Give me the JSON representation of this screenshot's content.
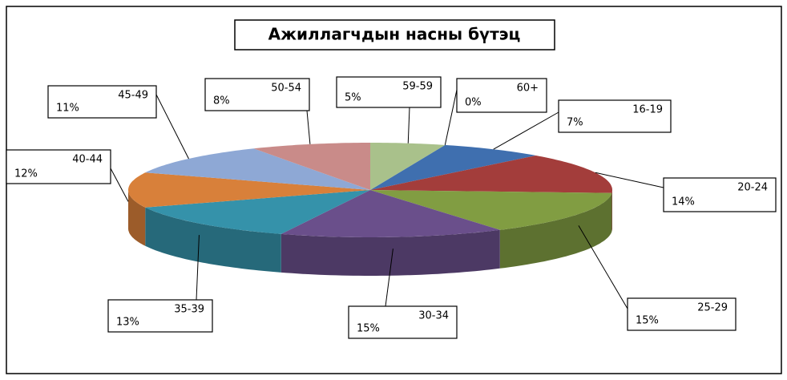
{
  "chart_data": {
    "type": "pie3d",
    "title": "Ажиллагчдын насны бүтэц",
    "categories": [
      "16-19",
      "20-24",
      "25-29",
      "30-34",
      "35-39",
      "40-44",
      "45-49",
      "50-54",
      "59-59",
      "60+"
    ],
    "values": [
      7,
      14,
      15,
      15,
      13,
      12,
      11,
      8,
      5,
      0
    ],
    "value_labels": [
      "7%",
      "14%",
      "15%",
      "15%",
      "13%",
      "12%",
      "11%",
      "8%",
      "5%",
      "0%"
    ],
    "colors": [
      "#3f6faf",
      "#a33d3b",
      "#819d42",
      "#6a4f8b",
      "#3592aa",
      "#d8803a",
      "#8ea8d5",
      "#c98b89",
      "#a9c18b",
      "#b3a2c7"
    ]
  }
}
